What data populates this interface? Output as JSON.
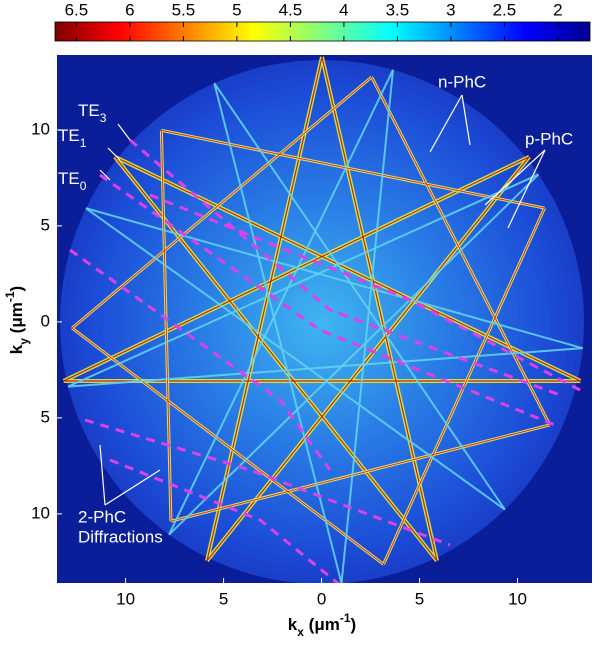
{
  "chart_data": {
    "type": "heatmap",
    "colorbar": {
      "clim": [
        1.7,
        6.7
      ],
      "reversed": true,
      "ticks": [
        6.5,
        6,
        5.5,
        5,
        4.5,
        4,
        3.5,
        3,
        2.5,
        2
      ]
    },
    "xlim": [
      -13.5,
      13.8
    ],
    "ylim": [
      -13.6,
      13.9
    ],
    "xticks": [
      {
        "value": -10,
        "label": "10"
      },
      {
        "value": -5,
        "label": "5"
      },
      0,
      5,
      10
    ],
    "yticks": [
      10,
      5,
      0,
      {
        "value": -5,
        "label": "5"
      },
      {
        "value": -10,
        "label": "10"
      }
    ],
    "xlabel": {
      "base": "k",
      "sub": "x",
      "unit": " (μm",
      "sup": "-1",
      "end": ")"
    },
    "ylabel": {
      "base": "k",
      "sub": "y",
      "unit": " (μm",
      "sup": "-1",
      "end": ")"
    },
    "annotations": {
      "te3": {
        "base": "TE",
        "sub": "3"
      },
      "te1": {
        "base": "TE",
        "sub": "1"
      },
      "te0": {
        "base": "TE",
        "sub": "0"
      },
      "n_phc": "n-PhC",
      "p_phc": "p-PhC",
      "diffractions": [
        "2-PhC",
        "Diffractions"
      ]
    }
  }
}
